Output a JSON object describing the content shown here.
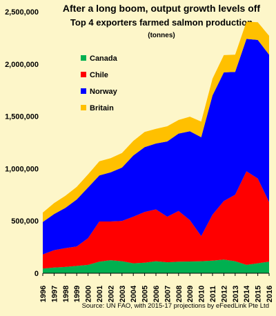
{
  "chart_data": {
    "type": "area",
    "stacked": true,
    "title": "After a long boom, output growth levels off",
    "subtitle": "Top 4 exporters farmed salmon production",
    "unit_label": "(tonnes)",
    "source": "Source: UN FAO, with 2015-17 projections by eFeedLink Pte Ltd",
    "x": [
      "1996",
      "1997",
      "1998",
      "1999",
      "2000",
      "2001",
      "2002",
      "2003",
      "2004",
      "2005",
      "2006",
      "2007",
      "2008",
      "2009",
      "2010",
      "2011",
      "2012",
      "2013",
      "2014",
      "2015",
      "2016"
    ],
    "ylim": [
      0,
      2500000
    ],
    "yticks": [
      0,
      500000,
      1000000,
      1500000,
      2000000,
      2500000
    ],
    "ytick_labels": [
      "0",
      "500,000",
      "1,000,000",
      "1,500,000",
      "2,000,000",
      "2,500,000"
    ],
    "legend_position": "upper-left",
    "series": [
      {
        "name": "Canada",
        "color": "#00b050",
        "values": [
          45000,
          55000,
          60000,
          70000,
          80000,
          110000,
          125000,
          115000,
          95000,
          100000,
          115000,
          105000,
          110000,
          112000,
          115000,
          120000,
          130000,
          115000,
          80000,
          95000,
          110000
        ]
      },
      {
        "name": "Chile",
        "color": "#ff0000",
        "values": [
          135000,
          165000,
          180000,
          185000,
          255000,
          385000,
          370000,
          385000,
          445000,
          485000,
          495000,
          435000,
          485000,
          395000,
          240000,
          440000,
          560000,
          635000,
          895000,
          810000,
          570000
        ]
      },
      {
        "name": "Norway",
        "color": "#0000ff",
        "values": [
          310000,
          345000,
          385000,
          450000,
          485000,
          440000,
          470000,
          510000,
          585000,
          620000,
          630000,
          720000,
          740000,
          850000,
          945000,
          1140000,
          1230000,
          1175000,
          1265000,
          1325000,
          1410000
        ]
      },
      {
        "name": "Britain",
        "color": "#ffc000",
        "values": [
          90000,
          105000,
          115000,
          120000,
          125000,
          135000,
          135000,
          140000,
          140000,
          145000,
          140000,
          145000,
          130000,
          140000,
          150000,
          160000,
          165000,
          165000,
          165000,
          170000,
          180000
        ]
      }
    ]
  }
}
